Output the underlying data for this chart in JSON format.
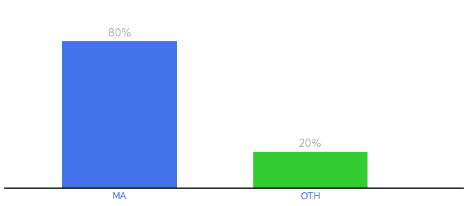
{
  "categories": [
    "MA",
    "OTH"
  ],
  "values": [
    80,
    20
  ],
  "bar_colors": [
    "#4472e8",
    "#33cc33"
  ],
  "label_texts": [
    "80%",
    "20%"
  ],
  "background_color": "#ffffff",
  "axis_line_color": "#000000",
  "label_color": "#aaaaaa",
  "tick_label_color": "#4472e8",
  "figsize": [
    6.8,
    3.0
  ],
  "dpi": 100,
  "ylim": [
    0,
    100
  ]
}
